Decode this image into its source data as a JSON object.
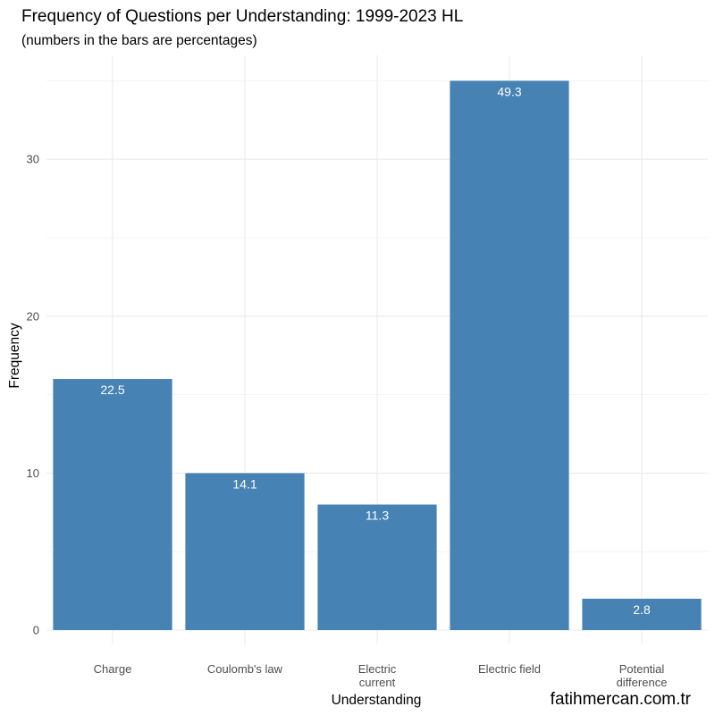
{
  "chart_data": {
    "type": "bar",
    "title": "Frequency of Questions per Understanding: 1999-2023 HL",
    "subtitle": "(numbers in the bars are percentages)",
    "xlabel": "Understanding",
    "ylabel": "Frequency",
    "categories": [
      [
        "Charge"
      ],
      [
        "Coulomb's law"
      ],
      [
        "Electric",
        "current"
      ],
      [
        "Electric field"
      ],
      [
        "Potential",
        "difference"
      ]
    ],
    "values": [
      16,
      10,
      8,
      35,
      2
    ],
    "bar_labels": [
      "22.5",
      "14.1",
      "11.3",
      "49.3",
      "2.8"
    ],
    "ylim": [
      0,
      35
    ],
    "yticks": [
      0,
      10,
      20,
      30
    ],
    "ytick_labels": [
      "0",
      "10",
      "20",
      "30"
    ],
    "grid": true,
    "bar_color": "#4682b4",
    "grid_color": "#ebebeb"
  },
  "watermark": "fatihmercan.com.tr"
}
